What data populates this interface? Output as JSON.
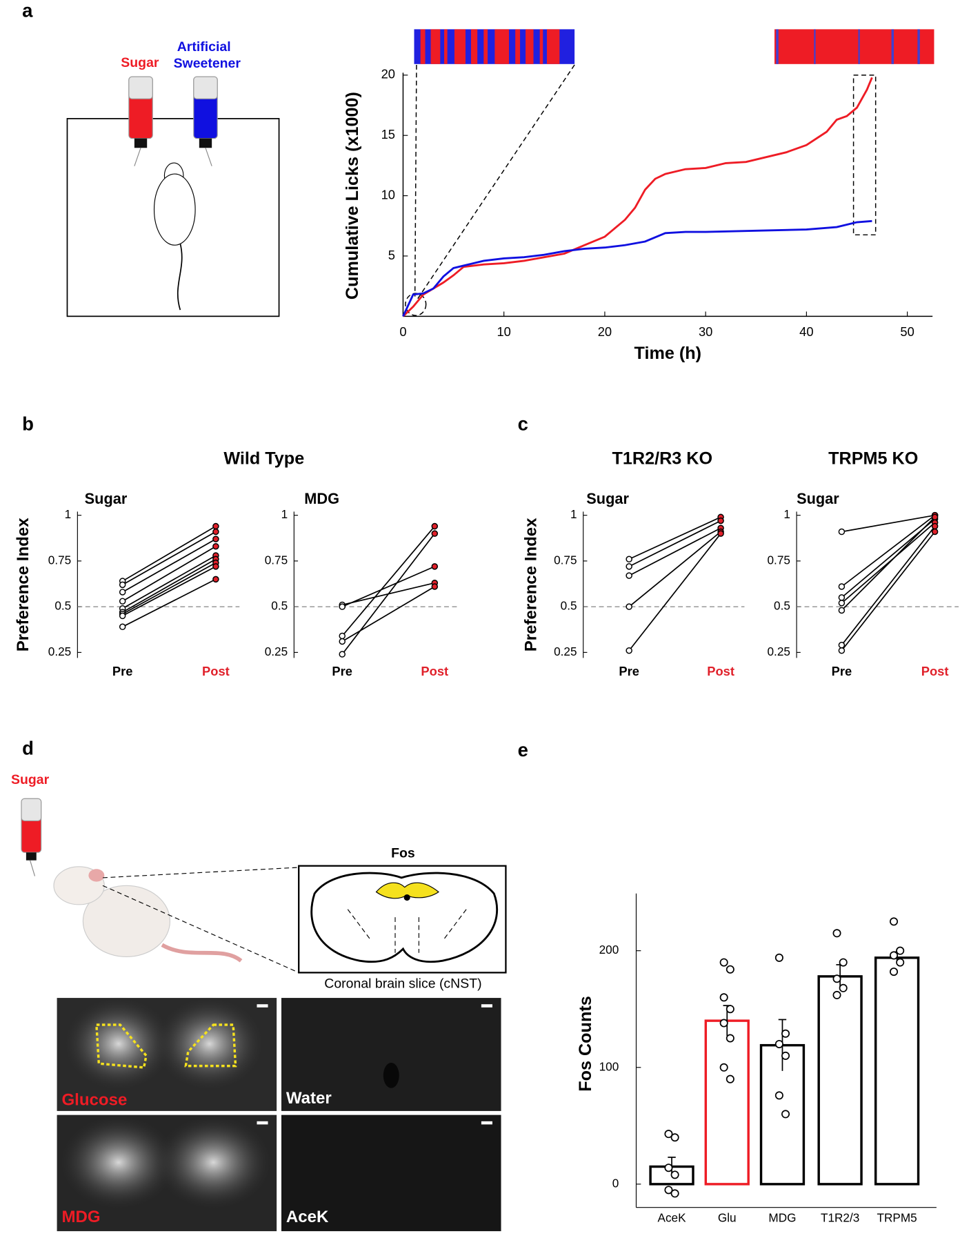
{
  "figure": {
    "panels": [
      "a",
      "b",
      "c",
      "d",
      "e"
    ],
    "a_labels": {
      "sugar": "Sugar",
      "sweetener_1": "Artificial",
      "sweetener_2": "Sweetener"
    },
    "group_titles": [
      "Wild Type",
      "T1R2/R3 KO",
      "TRPM5 KO"
    ],
    "d_labels": {
      "sugar": "Sugar",
      "fos": "Fos",
      "slice": "Coronal brain slice (cNST)",
      "images": [
        "Glucose",
        "Water",
        "MDG",
        "AceK"
      ]
    }
  },
  "chart_data": [
    {
      "type": "line",
      "xlabel": "Time (h)",
      "ylabel": "Cumulative Licks (x1000)",
      "xlim": [
        0,
        52.5
      ],
      "ylim": [
        0,
        20
      ],
      "xticks": [
        0,
        10,
        20,
        30,
        40,
        50
      ],
      "yticks": [
        5,
        10,
        15,
        20
      ],
      "series": [
        {
          "color": "#ee1c25",
          "x": [
            0,
            1,
            2,
            3,
            4,
            5,
            6,
            8,
            10,
            12,
            14,
            16,
            18,
            20,
            22,
            23,
            24,
            25,
            26,
            28,
            30,
            32,
            34,
            36,
            38,
            40,
            42,
            43,
            44,
            45,
            46,
            46.5
          ],
          "values": [
            0,
            0.8,
            1.8,
            2.3,
            2.8,
            3.4,
            4.1,
            4.3,
            4.4,
            4.6,
            4.9,
            5.2,
            5.9,
            6.6,
            8,
            9,
            10.5,
            11.4,
            11.8,
            12.2,
            12.3,
            12.7,
            12.8,
            13.2,
            13.6,
            14.2,
            15.3,
            16.3,
            16.6,
            17.3,
            18.8,
            19.8
          ]
        },
        {
          "color": "#1010e0",
          "x": [
            0,
            1,
            2,
            3,
            4,
            5,
            6,
            8,
            10,
            12,
            14,
            16,
            18,
            20,
            22,
            24,
            26,
            28,
            30,
            35,
            40,
            43,
            45,
            46.5
          ],
          "values": [
            0,
            1.8,
            1.9,
            2.3,
            3.3,
            4.0,
            4.2,
            4.6,
            4.8,
            4.9,
            5.1,
            5.4,
            5.6,
            5.7,
            5.9,
            6.2,
            6.9,
            7.0,
            7.0,
            7.1,
            7.2,
            7.4,
            7.8,
            7.9
          ]
        }
      ]
    },
    {
      "type": "paired",
      "title": "Sugar",
      "ylabel": "Preference Index",
      "categories": [
        "Pre",
        "Post"
      ],
      "category_colors": [
        "#000000",
        "#e0202a"
      ],
      "ylim": [
        0.22,
        1.02
      ],
      "yticks": [
        0.25,
        0.5,
        0.75,
        1
      ],
      "reference_line": 0.5,
      "pre_color": "#ffffff",
      "post_color": "#e0202a",
      "pre": [
        0.64,
        0.62,
        0.58,
        0.53,
        0.49,
        0.47,
        0.46,
        0.45,
        0.39
      ],
      "post": [
        0.94,
        0.91,
        0.87,
        0.83,
        0.78,
        0.76,
        0.74,
        0.72,
        0.65
      ]
    },
    {
      "type": "paired",
      "title": "MDG",
      "categories": [
        "Pre",
        "Post"
      ],
      "category_colors": [
        "#000000",
        "#e0202a"
      ],
      "ylim": [
        0.22,
        1.02
      ],
      "yticks": [
        0.25,
        0.5,
        0.75,
        1
      ],
      "reference_line": 0.5,
      "pre_color": "#ffffff",
      "post_color": "#e0202a",
      "pre": [
        0.51,
        0.5,
        0.34,
        0.31,
        0.24
      ],
      "post": [
        0.63,
        0.72,
        0.94,
        0.61,
        0.9
      ]
    },
    {
      "type": "paired",
      "title": "Sugar",
      "ylabel": "Preference Index",
      "categories": [
        "Pre",
        "Post"
      ],
      "category_colors": [
        "#000000",
        "#e0202a"
      ],
      "ylim": [
        0.22,
        1.02
      ],
      "yticks": [
        0.25,
        0.5,
        0.75,
        1
      ],
      "reference_line": 0.5,
      "pre_color": "#ffffff",
      "post_color": "#e0202a",
      "pre": [
        0.76,
        0.72,
        0.67,
        0.5,
        0.26
      ],
      "post": [
        0.99,
        0.97,
        0.93,
        0.91,
        0.9
      ]
    },
    {
      "type": "paired",
      "title": "Sugar",
      "categories": [
        "Pre",
        "Post"
      ],
      "category_colors": [
        "#000000",
        "#e0202a"
      ],
      "ylim": [
        0.22,
        1.02
      ],
      "yticks": [
        0.25,
        0.5,
        0.75,
        1
      ],
      "reference_line": 0.5,
      "pre_color": "#ffffff",
      "post_color": "#e0202a",
      "pre": [
        0.91,
        0.61,
        0.55,
        0.52,
        0.48,
        0.29,
        0.26
      ],
      "post": [
        1.0,
        1.0,
        0.98,
        0.96,
        0.99,
        0.94,
        0.91
      ]
    },
    {
      "type": "bar",
      "ylabel": "Fos Counts",
      "categories": [
        "AceK",
        "Glu",
        "MDG",
        "T1R2/3",
        "TRPM5"
      ],
      "values": [
        15,
        140,
        119,
        178,
        194
      ],
      "errors": [
        8,
        13,
        22,
        10,
        5
      ],
      "colors": [
        "#000000",
        "#ee1c25",
        "#000000",
        "#000000",
        "#000000"
      ],
      "points": [
        [
          43,
          40,
          14,
          8,
          -5,
          -8
        ],
        [
          190,
          184,
          160,
          150,
          138,
          125,
          100,
          90
        ],
        [
          194,
          129,
          120,
          110,
          76,
          60
        ],
        [
          215,
          190,
          176,
          168,
          162
        ],
        [
          225,
          200,
          196,
          190,
          182
        ]
      ],
      "ylim": [
        -20,
        249
      ],
      "yticks": [
        0,
        100,
        200
      ]
    }
  ]
}
